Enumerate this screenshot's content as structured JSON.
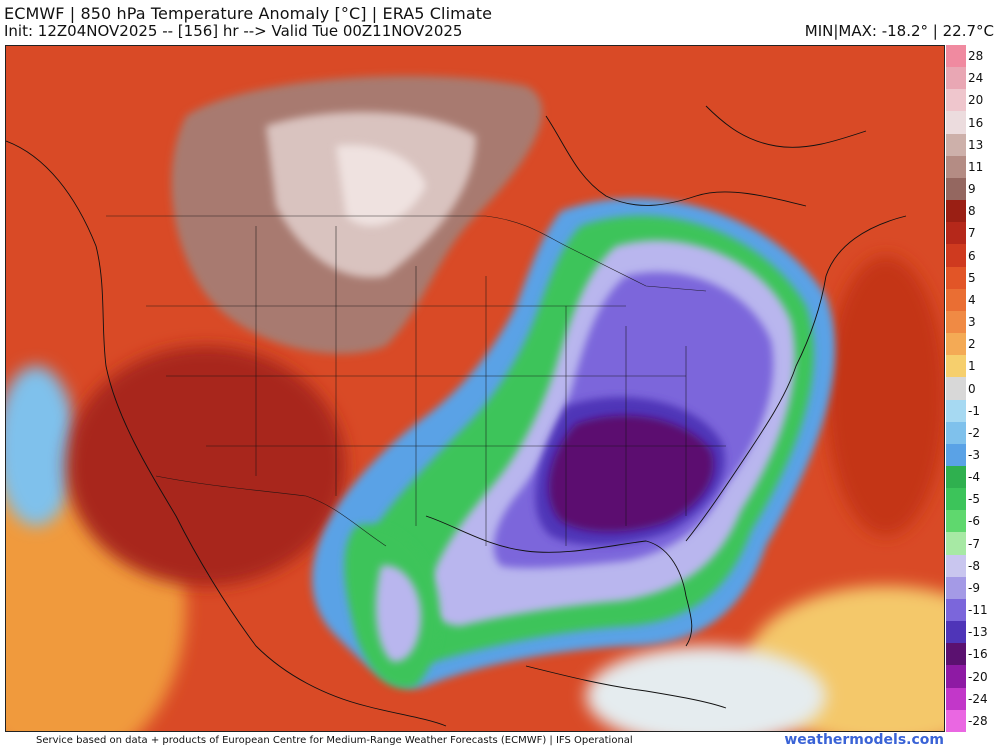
{
  "header": {
    "title": "ECMWF | 850 hPa Temperature Anomaly [°C] | ERA5 Climate",
    "subtitle": "Init: 12Z04NOV2025 -- [156] hr --> Valid Tue 00Z11NOV2025",
    "minmax": "MIN|MAX: -18.2° | 22.7°C"
  },
  "colorbar": {
    "labels": [
      "28",
      "24",
      "20",
      "16",
      "13",
      "11",
      "9",
      "8",
      "7",
      "6",
      "5",
      "4",
      "3",
      "2",
      "1",
      "0",
      "-1",
      "-2",
      "-3",
      "-4",
      "-5",
      "-6",
      "-7",
      "-8",
      "-9",
      "-11",
      "-13",
      "-16",
      "-20",
      "-24",
      "-28"
    ],
    "colors": [
      "#f08aa0",
      "#e9a7b4",
      "#efc6cd",
      "#ecdcde",
      "#cdb0aa",
      "#b48c84",
      "#946760",
      "#9a1f14",
      "#b5281a",
      "#cf3a1f",
      "#e25527",
      "#ea6e33",
      "#f08a44",
      "#f4aa55",
      "#f6cf6d",
      "#d8d8d8",
      "#a6d9f2",
      "#7fc1ec",
      "#5aa2e6",
      "#2fb04f",
      "#3cc45a",
      "#5fd86e",
      "#a7e9a4",
      "#c9c6ef",
      "#a49ae6",
      "#7b66db",
      "#4f35b8",
      "#5b1170",
      "#8e1aa4",
      "#c237c9",
      "#ea67e2"
    ]
  },
  "map": {
    "description_colors": {
      "background_warm": "#d9512a",
      "cold_core": "#5b1170"
    }
  },
  "footer": {
    "credit": "Service based on data + products of European Centre for Medium-Range Weather Forecasts (ECMWF) | IFS Operational",
    "brand": "weathermodels.com"
  }
}
